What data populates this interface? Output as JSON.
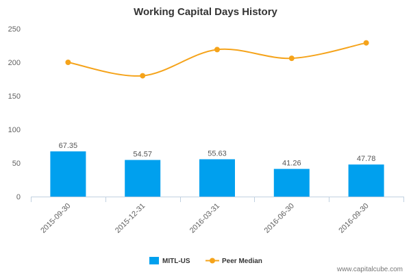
{
  "chart_data": {
    "type": "bar",
    "title": "Working Capital Days History",
    "categories": [
      "2015-09-30",
      "2015-12-31",
      "2016-03-31",
      "2016-06-30",
      "2016-09-30"
    ],
    "series": [
      {
        "name": "MITL-US",
        "kind": "bar",
        "color": "#00a0ee",
        "values": [
          67.35,
          54.57,
          55.63,
          41.26,
          47.78
        ],
        "value_labels": [
          "67.35",
          "54.57",
          "55.63",
          "41.26",
          "47.78"
        ]
      },
      {
        "name": "Peer Median",
        "kind": "line",
        "color": "#f5a31a",
        "values": [
          200,
          180,
          219,
          206,
          229
        ]
      }
    ],
    "ylim": [
      0,
      250
    ],
    "yticks": [
      0,
      50,
      100,
      150,
      200,
      250
    ],
    "ytick_labels": [
      "0",
      "50",
      "100",
      "150",
      "200",
      "250"
    ],
    "grid": false,
    "legend": "bottom-center"
  },
  "watermark": "www.capitalcube.com"
}
